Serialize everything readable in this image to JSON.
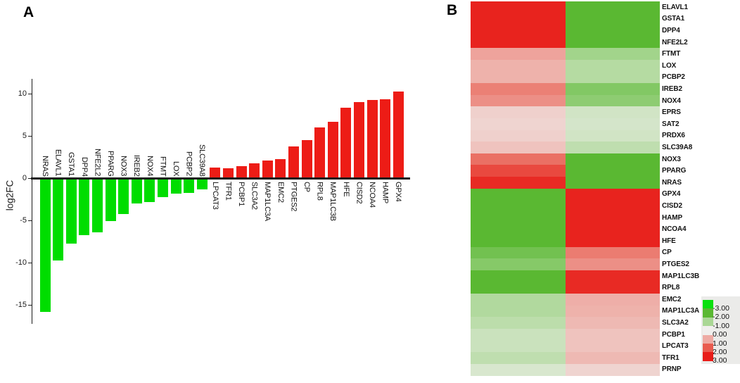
{
  "panels": {
    "a_label": "A",
    "b_label": "B",
    "a_ylabel": "log2FC"
  },
  "chart_data": [
    {
      "type": "bar",
      "panel": "A",
      "title": "",
      "xlabel": "",
      "ylabel": "log2FC",
      "ytick_labels": [
        "10",
        "5",
        "0",
        "-5",
        "-10",
        "-15"
      ],
      "ytick_values": [
        10,
        5,
        0,
        -5,
        -10,
        -15
      ],
      "ylim": [
        -17,
        12
      ],
      "grid": false,
      "categories": [
        "NRAS",
        "ELAVL1",
        "GSTA1",
        "DPP4",
        "NFE2L2",
        "PPARG",
        "NOX3",
        "IREB2",
        "NOX4",
        "FTMT",
        "LOX",
        "PCBP2",
        "SLC39A8",
        "LPCAT3",
        "TFR1",
        "PCBP1",
        "SLC3A2",
        "MAP1LC3A",
        "EMC2",
        "PTGES2",
        "CP",
        "RPL8",
        "MAP1LC3B",
        "HFE",
        "CISD2",
        "NCOA4",
        "HAMP",
        "GPX4"
      ],
      "values": [
        -15.8,
        -9.7,
        -7.7,
        -6.7,
        -6.4,
        -5.1,
        -4.2,
        -3.0,
        -2.8,
        -2.2,
        -1.8,
        -1.7,
        -1.3,
        1.25,
        1.2,
        1.45,
        1.75,
        2.1,
        2.3,
        3.75,
        4.5,
        6.0,
        6.7,
        8.4,
        9.0,
        9.3,
        9.35,
        10.3
      ],
      "bar_colors": {
        "up": "#ed1c16",
        "down": "#00dd00"
      }
    },
    {
      "type": "heatmap",
      "panel": "B",
      "n_columns": 2,
      "rows": [
        "ELAVL1",
        "GSTA1",
        "DPP4",
        "NFE2L2",
        "FTMT",
        "LOX",
        "PCBP2",
        "IREB2",
        "NOX4",
        "EPRS",
        "SAT2",
        "PRDX6",
        "SLC39A8",
        "NOX3",
        "PPARG",
        "NRAS",
        "GPX4",
        "CISD2",
        "HAMP",
        "NCOA4",
        "HFE",
        "CP",
        "PTGES2",
        "MAP1LC3B",
        "RPL8",
        "EMC2",
        "MAP1LC3A",
        "SLC3A2",
        "PCBP1",
        "LPCAT3",
        "TFR1",
        "PRNP"
      ],
      "values": [
        [
          2.9,
          -2.0
        ],
        [
          2.9,
          -2.0
        ],
        [
          2.9,
          -2.0
        ],
        [
          2.9,
          -2.0
        ],
        [
          1.1,
          -1.1
        ],
        [
          0.9,
          -0.85
        ],
        [
          0.9,
          -0.85
        ],
        [
          1.55,
          -1.5
        ],
        [
          1.35,
          -1.35
        ],
        [
          0.45,
          -0.45
        ],
        [
          0.4,
          -0.4
        ],
        [
          0.45,
          -0.45
        ],
        [
          0.65,
          -0.7
        ],
        [
          1.75,
          -2.0
        ],
        [
          2.3,
          -2.0
        ],
        [
          2.8,
          -2.0
        ],
        [
          -2.0,
          2.9
        ],
        [
          -2.0,
          2.9
        ],
        [
          -2.0,
          2.9
        ],
        [
          -2.0,
          2.9
        ],
        [
          -2.0,
          2.9
        ],
        [
          -1.7,
          1.6
        ],
        [
          -1.45,
          1.35
        ],
        [
          -2.0,
          2.8
        ],
        [
          -2.0,
          2.8
        ],
        [
          -0.9,
          0.95
        ],
        [
          -0.9,
          0.9
        ],
        [
          -0.75,
          0.8
        ],
        [
          -0.55,
          0.65
        ],
        [
          -0.55,
          0.65
        ],
        [
          -0.7,
          0.8
        ],
        [
          -0.35,
          0.4
        ]
      ],
      "legend": {
        "tick_labels": [
          "-3.00",
          "-2.00",
          "-1.00",
          "0.00",
          "1.00",
          "2.00",
          "3.00"
        ],
        "tick_values": [
          -3,
          -2,
          -1,
          0,
          1,
          2,
          3
        ],
        "stop_colors": [
          "#09e00e",
          "#5ab832",
          "#aad795",
          "#f0efed",
          "#eeaba4",
          "#e95c4f",
          "#e81d19"
        ],
        "position": "bottom-right"
      }
    }
  ]
}
